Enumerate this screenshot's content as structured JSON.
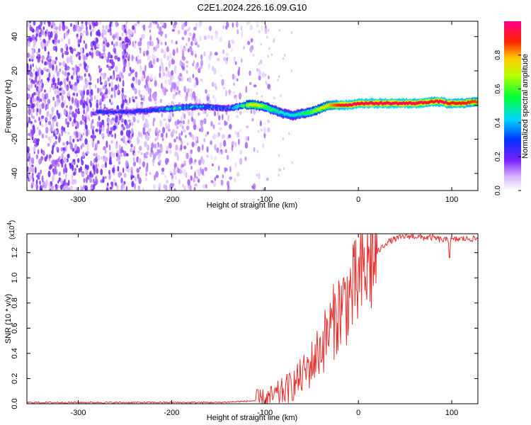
{
  "title": "C2E1.2024.226.16.09.G10",
  "chart_data": [
    {
      "type": "heatmap",
      "xlabel": "Height of straight line (km)",
      "ylabel": "Frequency (Hz)",
      "xlim": [
        -355,
        128
      ],
      "ylim": [
        -50,
        49
      ],
      "xticks": [
        -300,
        -200,
        -100,
        0,
        100
      ],
      "yticks": [
        -40,
        -20,
        0,
        20,
        40
      ],
      "xticklabels": [
        "-300",
        "-200",
        "-100",
        "0",
        "100"
      ],
      "yticklabels": [
        "-40",
        "-20",
        "0",
        "20",
        "40"
      ],
      "colorbar": {
        "label": "Normalized spectral amplitude",
        "range": [
          0,
          1
        ],
        "ticks": [
          0.0,
          0.2,
          0.4,
          0.6,
          0.8
        ],
        "ticklabels": [
          "0.0",
          "0.2",
          "0.4",
          "0.6",
          "0.8"
        ],
        "colormap": "rainbow (white-violet-blue-cyan-green-yellow-red-magenta)"
      },
      "ridge": {
        "x": [
          -280,
          -250,
          -220,
          -200,
          -180,
          -160,
          -140,
          -120,
          -110,
          -100,
          -90,
          -80,
          -70,
          -60,
          -50,
          -40,
          -30,
          -20,
          -10,
          0,
          20,
          40,
          60,
          80,
          90,
          95,
          100,
          110,
          128
        ],
        "y": [
          -4,
          -4,
          -3,
          -2,
          -1,
          -1,
          -2,
          0,
          0,
          -1,
          -3,
          -5,
          -6,
          -5,
          -4,
          -2,
          0,
          0,
          0,
          1,
          1,
          1,
          1,
          2,
          2,
          1,
          1,
          1,
          2
        ],
        "amplitude": [
          0.25,
          0.25,
          0.3,
          0.45,
          0.4,
          0.35,
          0.3,
          0.65,
          0.75,
          0.6,
          0.5,
          0.45,
          0.45,
          0.5,
          0.6,
          0.7,
          0.8,
          0.9,
          0.95,
          0.95,
          0.95,
          0.95,
          0.95,
          0.9,
          0.95,
          0.9,
          0.9,
          0.9,
          0.85
        ]
      },
      "noise_region_x": [
        -355,
        -100
      ]
    },
    {
      "type": "line",
      "xlabel": "Height of straight line (km)",
      "ylabel": "SNR (10 * v/v)",
      "scale_note": "(x10^4)",
      "xlim": [
        -355,
        128
      ],
      "ylim": [
        0,
        1.35
      ],
      "xticks": [
        -300,
        -200,
        -100,
        0,
        100
      ],
      "yticks": [
        0.0,
        0.2,
        0.4,
        0.6,
        0.8,
        1.0,
        1.2
      ],
      "xticklabels": [
        "-300",
        "-200",
        "-100",
        "0",
        "100"
      ],
      "yticklabels": [
        "0.0",
        "0.2",
        "0.4",
        "0.6",
        "0.8",
        "1.0",
        "1.2"
      ],
      "series": [
        {
          "color": "#e8302e",
          "x": [
            -355,
            -300,
            -250,
            -200,
            -150,
            -120,
            -100,
            -90,
            -80,
            -70,
            -60,
            -50,
            -40,
            -30,
            -20,
            -10,
            0,
            10,
            20,
            30,
            40,
            50,
            60,
            70,
            80,
            90,
            100,
            110,
            128
          ],
          "y": [
            0.01,
            0.01,
            0.01,
            0.01,
            0.01,
            0.02,
            0.03,
            0.06,
            0.1,
            0.15,
            0.22,
            0.32,
            0.45,
            0.6,
            0.75,
            0.85,
            0.95,
            1.1,
            1.2,
            1.28,
            1.31,
            1.33,
            1.33,
            1.32,
            1.32,
            1.3,
            1.3,
            1.31,
            1.31
          ]
        }
      ]
    }
  ]
}
